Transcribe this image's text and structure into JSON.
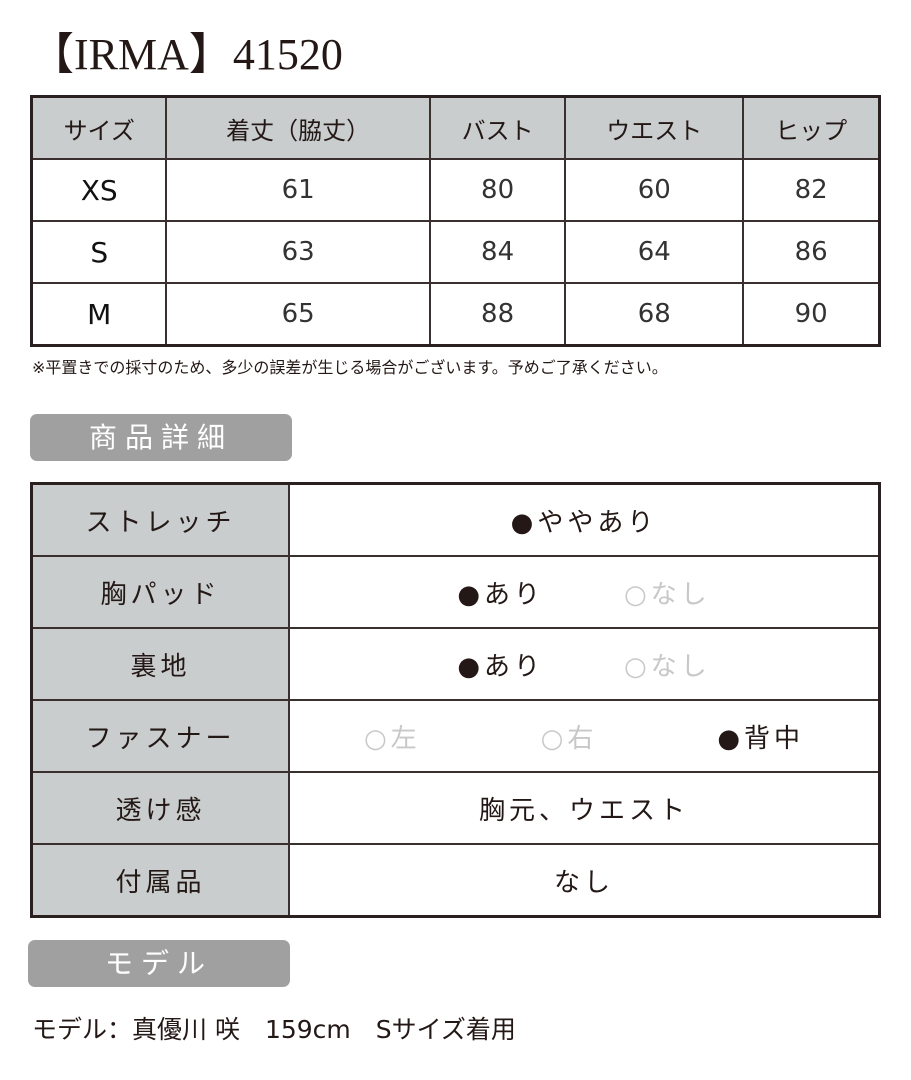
{
  "title": "【IRMA】41520",
  "size_table": {
    "headers": [
      "サイズ",
      "着丈（脇丈）",
      "バスト",
      "ウエスト",
      "ヒップ"
    ],
    "rows": [
      [
        "XS",
        "61",
        "80",
        "60",
        "82"
      ],
      [
        "S",
        "63",
        "84",
        "64",
        "86"
      ],
      [
        "M",
        "65",
        "88",
        "68",
        "90"
      ]
    ]
  },
  "note": "※平置きでの採寸のため、多少の誤差が生じる場合がございます。予めご了承ください。",
  "detail_badge": "商品詳細",
  "details": [
    {
      "label": "ストレッチ",
      "options": [
        {
          "text": "●ややあり",
          "on": true
        }
      ]
    },
    {
      "label": "胸パッド",
      "options": [
        {
          "text": "●あり",
          "on": true
        },
        {
          "text": "○なし",
          "on": false
        }
      ]
    },
    {
      "label": "裏地",
      "options": [
        {
          "text": "●あり",
          "on": true
        },
        {
          "text": "○なし",
          "on": false
        }
      ]
    },
    {
      "label": "ファスナー",
      "options": [
        {
          "text": "○左",
          "on": false
        },
        {
          "text": "○右",
          "on": false
        },
        {
          "text": "●背中",
          "on": true
        }
      ]
    },
    {
      "label": "透け感",
      "options": [
        {
          "text": "胸元、ウエスト",
          "on": true
        }
      ]
    },
    {
      "label": "付属品",
      "options": [
        {
          "text": "なし",
          "on": true
        }
      ]
    }
  ],
  "model_badge": "モデル",
  "model_text": "モデル：真優川 咲　159cm　Sサイズ着用",
  "colors": {
    "header_bg": "#c9cdce",
    "badge_bg": "#a0a0a0",
    "inactive": "#c8c8c8"
  }
}
